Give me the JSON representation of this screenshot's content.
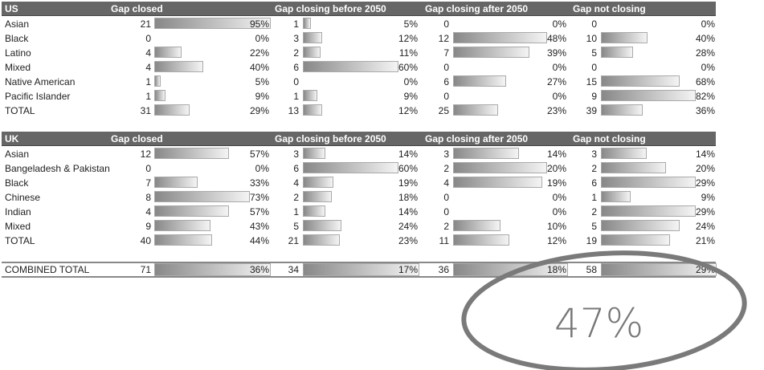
{
  "columns": [
    "Gap closed",
    "Gap closing before 2050",
    "Gap closing after 2050",
    "Gap not closing"
  ],
  "us": {
    "title": "US",
    "rows": [
      {
        "label": "Asian",
        "cells": [
          [
            21,
            95
          ],
          [
            1,
            5
          ],
          [
            0,
            0
          ],
          [
            0,
            0
          ]
        ]
      },
      {
        "label": "Black",
        "cells": [
          [
            0,
            0
          ],
          [
            3,
            12
          ],
          [
            12,
            48
          ],
          [
            10,
            40
          ]
        ]
      },
      {
        "label": "Latino",
        "cells": [
          [
            4,
            22
          ],
          [
            2,
            11
          ],
          [
            7,
            39
          ],
          [
            5,
            28
          ]
        ]
      },
      {
        "label": "Mixed",
        "cells": [
          [
            4,
            40
          ],
          [
            6,
            60
          ],
          [
            0,
            0
          ],
          [
            0,
            0
          ]
        ]
      },
      {
        "label": "Native American",
        "cells": [
          [
            1,
            5
          ],
          [
            0,
            0
          ],
          [
            6,
            27
          ],
          [
            15,
            68
          ]
        ]
      },
      {
        "label": "Pacific Islander",
        "cells": [
          [
            1,
            9
          ],
          [
            1,
            9
          ],
          [
            0,
            0
          ],
          [
            9,
            82
          ]
        ]
      },
      {
        "label": "TOTAL",
        "cells": [
          [
            31,
            29
          ],
          [
            13,
            12
          ],
          [
            25,
            23
          ],
          [
            39,
            36
          ]
        ]
      }
    ]
  },
  "uk": {
    "title": "UK",
    "rows": [
      {
        "label": "Asian",
        "cells": [
          [
            12,
            57
          ],
          [
            3,
            14
          ],
          [
            3,
            14
          ],
          [
            3,
            14
          ]
        ]
      },
      {
        "label": "Bangeladesh & Pakistan",
        "cells": [
          [
            0,
            0
          ],
          [
            6,
            60
          ],
          [
            2,
            20
          ],
          [
            2,
            20
          ]
        ]
      },
      {
        "label": "Black",
        "cells": [
          [
            7,
            33
          ],
          [
            4,
            19
          ],
          [
            4,
            19
          ],
          [
            6,
            29
          ]
        ]
      },
      {
        "label": "Chinese",
        "cells": [
          [
            8,
            73
          ],
          [
            2,
            18
          ],
          [
            0,
            0
          ],
          [
            1,
            9
          ]
        ]
      },
      {
        "label": "Indian",
        "cells": [
          [
            4,
            57
          ],
          [
            1,
            14
          ],
          [
            0,
            0
          ],
          [
            2,
            29
          ]
        ]
      },
      {
        "label": "Mixed",
        "cells": [
          [
            9,
            43
          ],
          [
            5,
            24
          ],
          [
            2,
            10
          ],
          [
            5,
            24
          ]
        ]
      },
      {
        "label": "TOTAL",
        "cells": [
          [
            40,
            44
          ],
          [
            21,
            23
          ],
          [
            11,
            12
          ],
          [
            19,
            21
          ]
        ]
      }
    ]
  },
  "combined": {
    "label": "COMBINED TOTAL",
    "cells": [
      [
        71,
        36
      ],
      [
        34,
        17
      ],
      [
        36,
        18
      ],
      [
        58,
        29
      ]
    ]
  },
  "annotation": {
    "text": "47%",
    "color": "#777777"
  }
}
